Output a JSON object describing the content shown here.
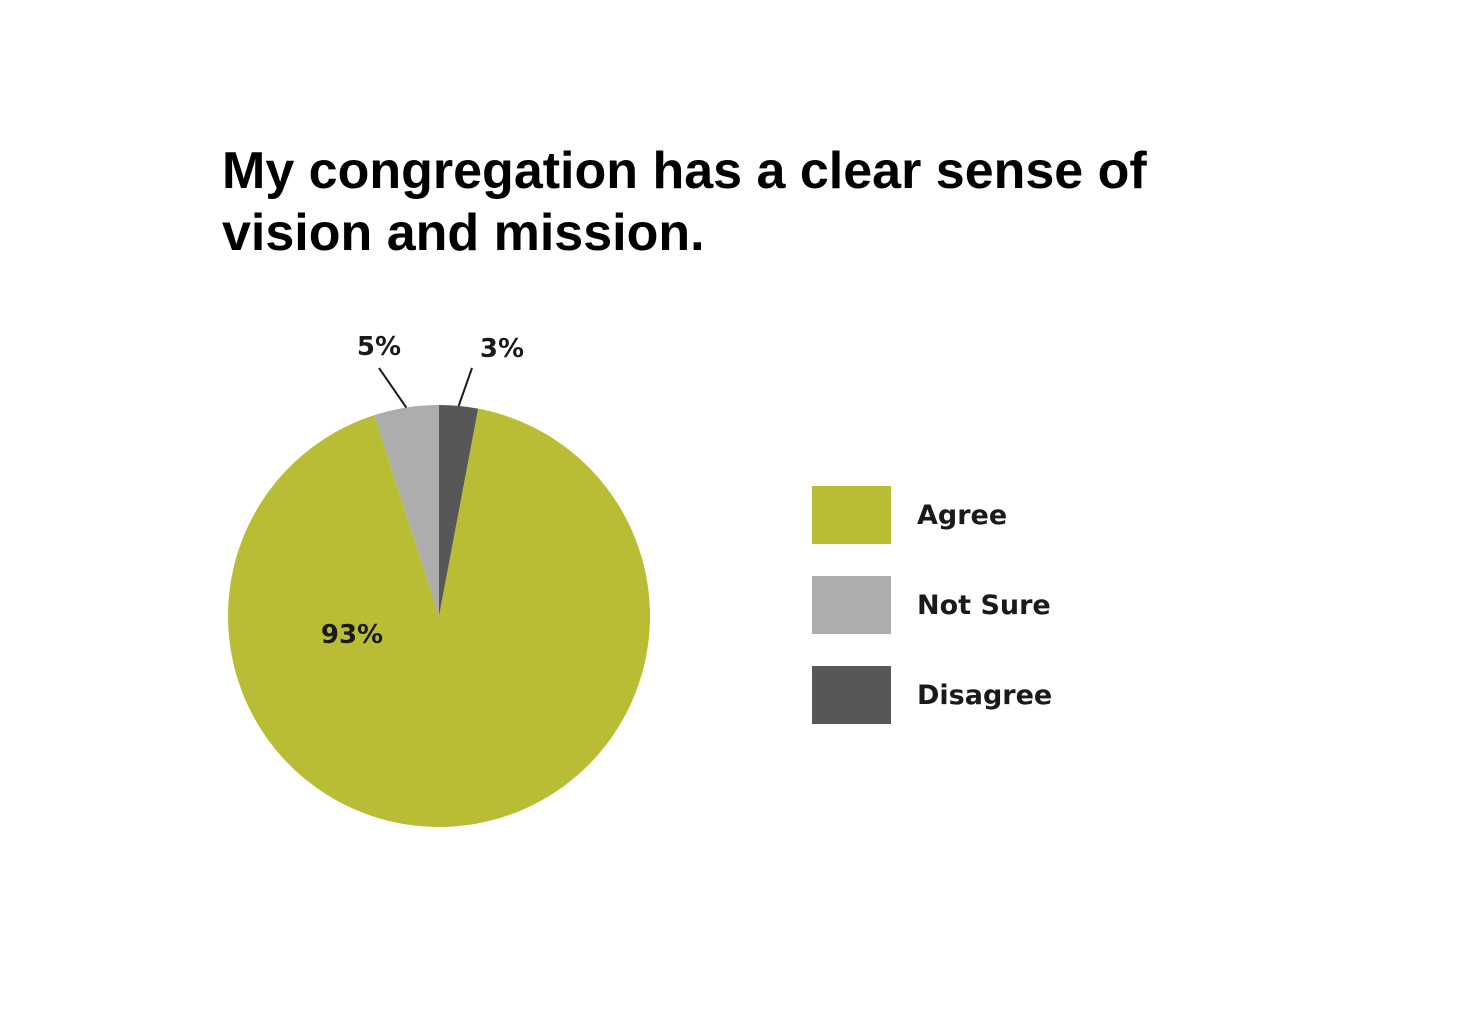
{
  "chart_data": {
    "type": "pie",
    "title": "My congregation has a clear sense of vision and mission.",
    "categories": [
      "Agree",
      "Not Sure",
      "Disagree"
    ],
    "values": [
      93,
      5,
      3
    ],
    "labels": [
      "93%",
      "5%",
      "3%"
    ],
    "colors": [
      "#b8bd35",
      "#adadad",
      "#575757"
    ],
    "legend": {
      "position": "right",
      "entries": [
        "Agree",
        "Not Sure",
        "Disagree"
      ]
    }
  }
}
